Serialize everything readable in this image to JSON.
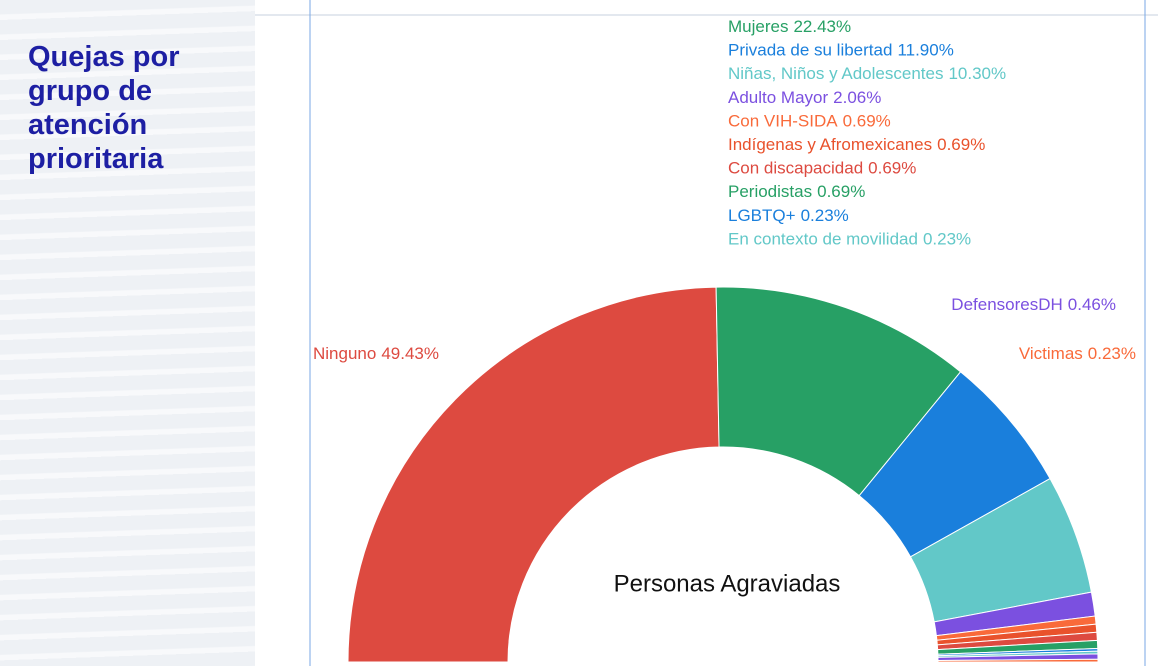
{
  "panel": {
    "title_lines": [
      "Quejas por",
      "grupo de",
      "atención",
      "prioritaria"
    ]
  },
  "chart_data": {
    "type": "semi-donut",
    "title": "Personas Agraviadas",
    "categories": [
      "Ninguno",
      "Mujeres",
      "Privada de su libertad",
      "Niñas, Niños y Adolescentes",
      "Adulto Mayor",
      "Con VIH-SIDA",
      "Indígenas y Afromexicanes",
      "Con discapacidad",
      "Periodistas",
      "LGBTQ+",
      "En contexto de movilidad",
      "DefensoresDH",
      "Victimas"
    ],
    "values": [
      49.43,
      22.43,
      11.9,
      10.3,
      2.06,
      0.69,
      0.69,
      0.69,
      0.69,
      0.23,
      0.23,
      0.46,
      0.23
    ],
    "value_labels": [
      "49.43%",
      "22.43%",
      "11.90%",
      "10.30%",
      "2.06%",
      "0.69%",
      "0.69%",
      "0.69%",
      "0.69%",
      "0.23%",
      "0.23%",
      "0.46%",
      "0.23%"
    ],
    "colors": [
      "#dd4a40",
      "#27a065",
      "#1a7fdc",
      "#62c8c8",
      "#7b50e0",
      "#f96a3a",
      "#e9522c",
      "#dd4a40",
      "#27a065",
      "#1a7fdc",
      "#62c8c8",
      "#7b50e0",
      "#f96a3a"
    ]
  }
}
